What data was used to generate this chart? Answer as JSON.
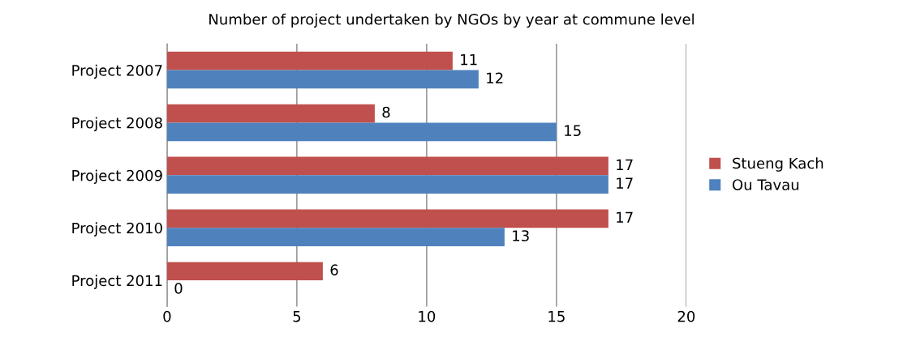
{
  "chart_data": {
    "type": "bar",
    "orientation": "horizontal",
    "title": "Number of project undertaken by NGOs by year at commune level",
    "categories": [
      "Project 2007",
      "Project 2008",
      "Project 2009",
      "Project 2010",
      "Project 2011"
    ],
    "series": [
      {
        "name": "Stueng Kach",
        "color": "#c0504d",
        "values": [
          11,
          8,
          17,
          17,
          6
        ]
      },
      {
        "name": "Ou Tavau",
        "color": "#4f81bd",
        "values": [
          12,
          15,
          17,
          13,
          0
        ]
      }
    ],
    "xlim": [
      0,
      20
    ],
    "xticks": [
      0,
      5,
      10,
      15,
      20
    ],
    "grid": "x",
    "legend": "right",
    "data_labels": true
  }
}
